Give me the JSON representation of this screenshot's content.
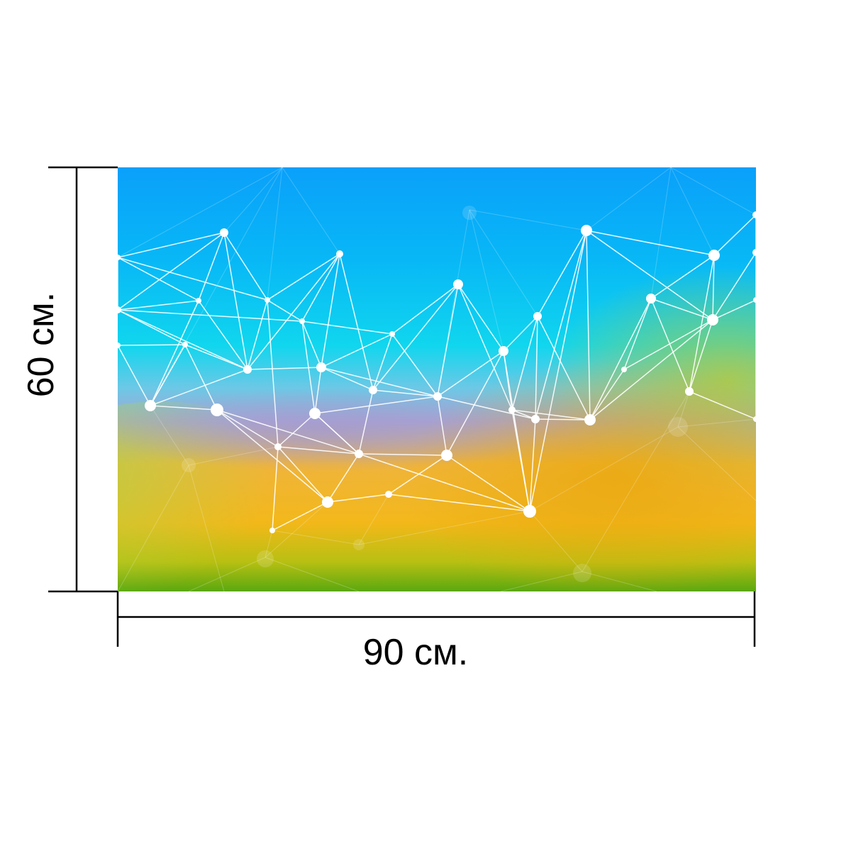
{
  "dimensions": {
    "width_label": "90 см.",
    "height_label": "60 см."
  },
  "image": {
    "subject": "low-poly-network-artwork",
    "colors": {
      "top": "#0aa2f7",
      "upper_mid": "#0fd3ef",
      "mid": "#9aa4d6",
      "lower_mid": "#f3b71c",
      "bottom": "#5dab10",
      "lines": "#ffffff"
    }
  }
}
